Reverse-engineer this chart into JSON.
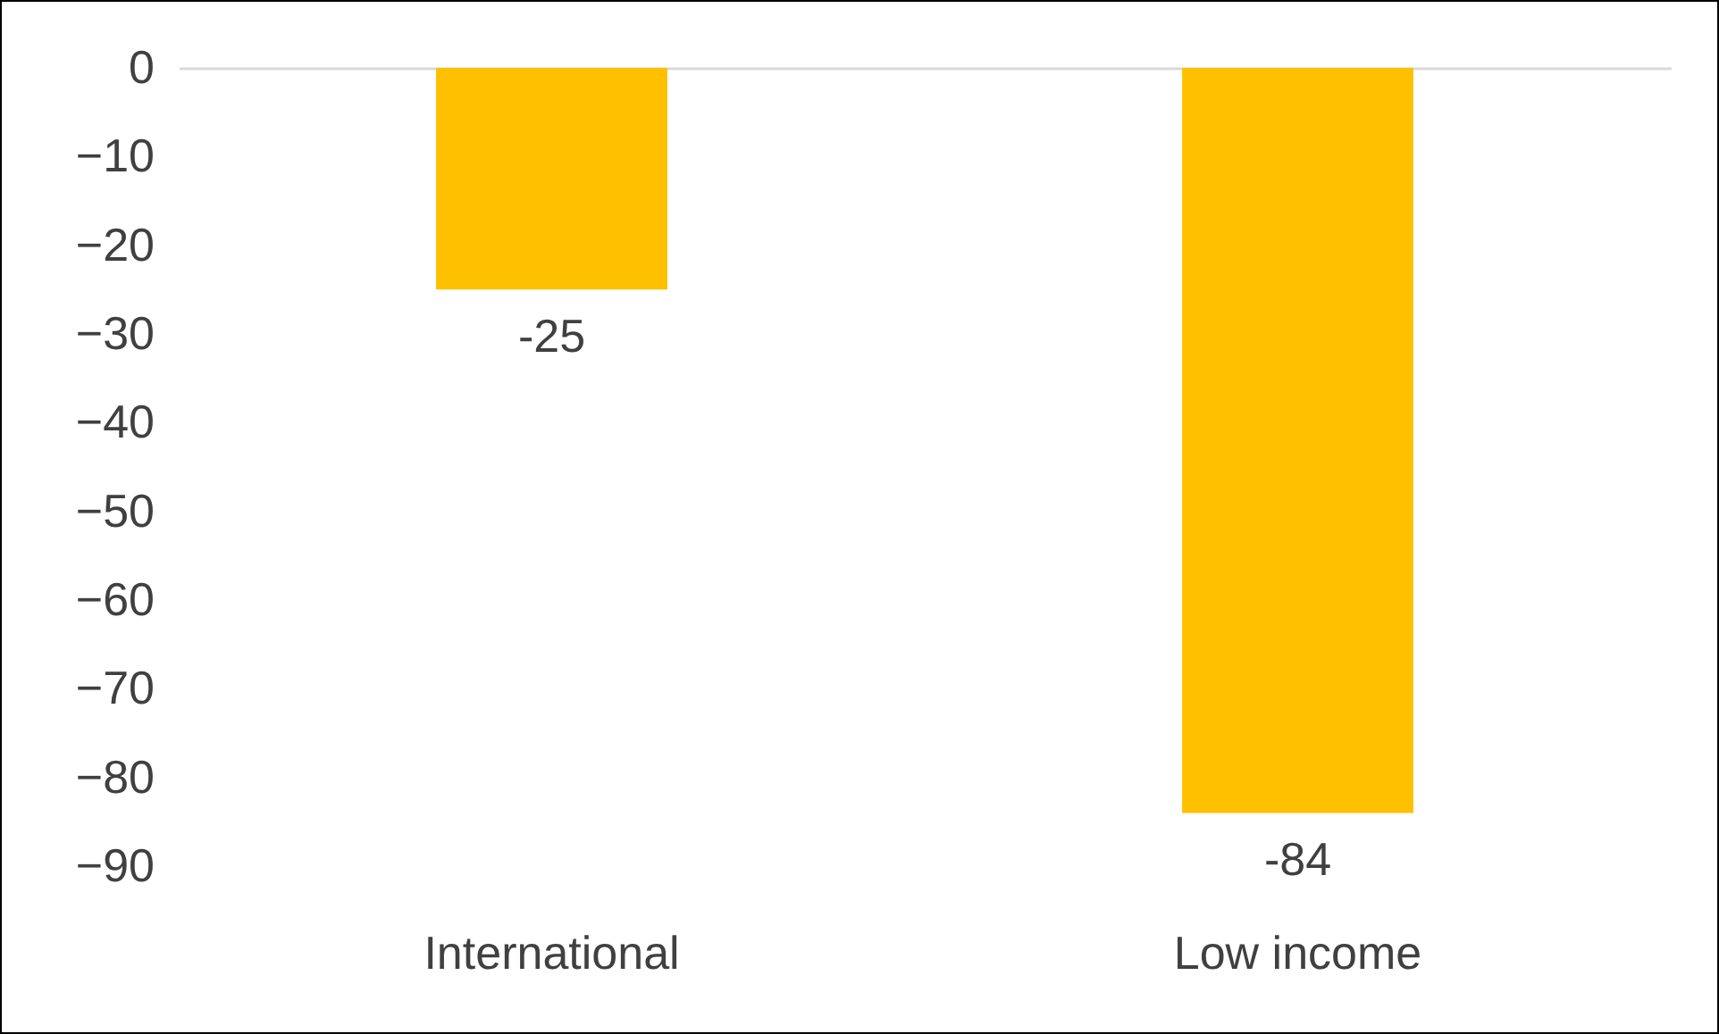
{
  "chart_data": {
    "type": "bar",
    "categories": [
      "International",
      "Low income"
    ],
    "values": [
      -25,
      -84
    ],
    "color": "#ffc000",
    "ylim": [
      -90,
      0
    ],
    "yticks": [
      0,
      -10,
      -20,
      -30,
      -40,
      -50,
      -60,
      -70,
      -80,
      -90
    ],
    "data_labels": true
  }
}
